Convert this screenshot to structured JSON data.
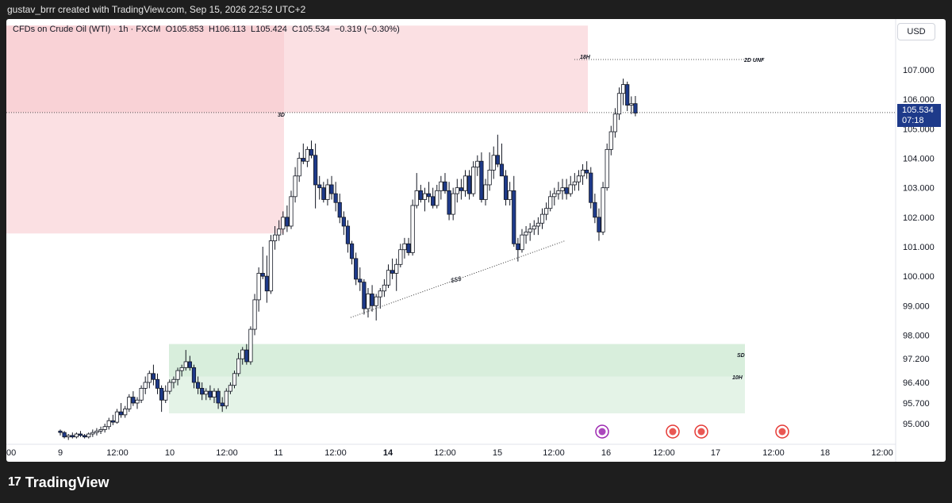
{
  "header": {
    "attribution": "gustav_brrr created with TradingView.com, Sep 15, 2026 22:52 UTC+2"
  },
  "legend": {
    "symbol": "CFDs on Crude Oil (WTI)",
    "interval": "1h",
    "source": "FXCM",
    "ohlc_text": "O105.853  H106.113  L105.424  C105.534  −0.319 (−0.30%)"
  },
  "currency": "USD",
  "last_price": {
    "price": "105.534",
    "countdown": "07:18"
  },
  "footer": {
    "logo": "17",
    "brand": "TradingView"
  },
  "colors": {
    "bull_candle_fill": "#ffffff",
    "bear_candle_fill": "#1e3a8a",
    "candle_outline": "#131722",
    "supply_zone": "#f7c6cc",
    "demand_zone": "#cde9d3",
    "event_purple": "#9c27b0",
    "event_red": "#e53935"
  },
  "chart_data": {
    "type": "candlestick",
    "symbol": "CFDs on Crude Oil (WTI)",
    "timeframe": "1h",
    "y_axis": {
      "ticks": [
        95.0,
        95.7,
        96.4,
        97.2,
        98.0,
        99.0,
        100.0,
        101.0,
        102.0,
        103.0,
        104.0,
        105.0,
        106.0,
        107.0
      ],
      "tick_labels": [
        "95.000",
        "95.700",
        "96.400",
        "97.200",
        "98.000",
        "99.000",
        "100.000",
        "101.000",
        "102.000",
        "103.000",
        "104.000",
        "105.000",
        "106.000",
        "107.000"
      ],
      "range": [
        94.4,
        108.5
      ]
    },
    "x_axis": {
      "labels": [
        "00",
        "9",
        "12:00",
        "10",
        "12:00",
        "11",
        "12:00",
        "14",
        "12:00",
        "15",
        "12:00",
        "16",
        "12:00",
        "17",
        "12:00",
        "18",
        "12:00"
      ],
      "bold_labels": [
        "14"
      ]
    },
    "annotations": {
      "zone_labels": [
        "3D",
        "18H",
        "2D UNF",
        "SD",
        "10H"
      ],
      "trendline_label": "$$$"
    },
    "current_price": 105.534,
    "levels": {
      "2D UNF": 107.35,
      "current": 105.55
    },
    "zones": [
      {
        "label": "3D",
        "type": "supply",
        "top": 108.5,
        "bottom": 101.45,
        "from": "Sep 8",
        "to": "Sep 11 12:00"
      },
      {
        "label": "18H",
        "type": "supply",
        "top": 108.5,
        "bottom": 105.55,
        "from": "Sep 8",
        "to": "Sep 15 20:00"
      },
      {
        "label": "SD",
        "type": "demand",
        "top": 97.7,
        "bottom": 96.6,
        "from": "Sep 10",
        "to": "Sep 17"
      },
      {
        "label": "10H",
        "type": "demand",
        "top": 97.7,
        "bottom": 95.35,
        "from": "Sep 10",
        "to": "Sep 17"
      }
    ],
    "trendline": {
      "label": "$$$",
      "start": {
        "time": "Sep 14 05:00",
        "price": 98.6
      },
      "end": {
        "time": "Sep 15 17:00",
        "price": 101.2
      }
    },
    "candles": [
      [
        94.75,
        94.8,
        94.6,
        94.7
      ],
      [
        94.7,
        94.75,
        94.5,
        94.55
      ],
      [
        94.55,
        94.65,
        94.45,
        94.6
      ],
      [
        94.6,
        94.7,
        94.5,
        94.55
      ],
      [
        94.55,
        94.7,
        94.5,
        94.65
      ],
      [
        94.65,
        94.75,
        94.55,
        94.6
      ],
      [
        94.6,
        94.65,
        94.5,
        94.55
      ],
      [
        94.55,
        94.7,
        94.5,
        94.65
      ],
      [
        94.65,
        94.8,
        94.55,
        94.7
      ],
      [
        94.7,
        94.85,
        94.6,
        94.75
      ],
      [
        94.75,
        94.9,
        94.65,
        94.8
      ],
      [
        94.8,
        95.0,
        94.7,
        94.9
      ],
      [
        94.9,
        95.2,
        94.8,
        95.1
      ],
      [
        95.1,
        95.3,
        94.95,
        95.05
      ],
      [
        95.05,
        95.5,
        95.0,
        95.4
      ],
      [
        95.4,
        95.7,
        95.2,
        95.3
      ],
      [
        95.3,
        95.6,
        95.2,
        95.5
      ],
      [
        95.5,
        96.0,
        95.4,
        95.9
      ],
      [
        95.9,
        96.1,
        95.6,
        95.7
      ],
      [
        95.7,
        95.9,
        95.5,
        95.8
      ],
      [
        95.8,
        96.3,
        95.7,
        96.2
      ],
      [
        96.2,
        96.6,
        96.0,
        96.4
      ],
      [
        96.4,
        96.8,
        96.2,
        96.7
      ],
      [
        96.7,
        97.0,
        96.3,
        96.5
      ],
      [
        96.5,
        96.7,
        96.0,
        96.2
      ],
      [
        96.2,
        96.3,
        95.4,
        95.8
      ],
      [
        95.8,
        96.3,
        95.7,
        96.1
      ],
      [
        96.1,
        96.5,
        96.0,
        96.4
      ],
      [
        96.4,
        96.6,
        96.2,
        96.5
      ],
      [
        96.5,
        96.9,
        96.3,
        96.8
      ],
      [
        96.8,
        97.0,
        96.6,
        96.9
      ],
      [
        96.9,
        97.5,
        96.8,
        97.1
      ],
      [
        97.1,
        97.3,
        96.8,
        96.9
      ],
      [
        96.9,
        97.0,
        96.2,
        96.4
      ],
      [
        96.4,
        96.6,
        96.0,
        96.2
      ],
      [
        96.2,
        96.4,
        95.8,
        96.0
      ],
      [
        96.0,
        96.2,
        95.8,
        96.1
      ],
      [
        96.1,
        96.3,
        95.8,
        95.9
      ],
      [
        95.9,
        96.2,
        95.7,
        96.1
      ],
      [
        96.1,
        96.2,
        95.5,
        95.7
      ],
      [
        95.7,
        95.9,
        95.4,
        95.6
      ],
      [
        95.6,
        96.2,
        95.5,
        96.1
      ],
      [
        96.1,
        96.4,
        96.0,
        96.3
      ],
      [
        96.3,
        96.8,
        96.2,
        96.7
      ],
      [
        96.7,
        97.4,
        96.6,
        97.2
      ],
      [
        97.2,
        97.6,
        97.0,
        97.5
      ],
      [
        97.5,
        97.7,
        97.0,
        97.1
      ],
      [
        97.1,
        98.3,
        97.0,
        98.2
      ],
      [
        98.2,
        99.4,
        98.0,
        99.2
      ],
      [
        99.2,
        100.3,
        98.8,
        100.1
      ],
      [
        100.1,
        101.0,
        99.9,
        100.0
      ],
      [
        100.0,
        100.7,
        99.1,
        99.5
      ],
      [
        99.5,
        101.4,
        99.4,
        101.2
      ],
      [
        101.2,
        101.7,
        100.9,
        101.4
      ],
      [
        101.4,
        101.9,
        101.2,
        101.6
      ],
      [
        101.6,
        102.2,
        101.4,
        102.0
      ],
      [
        102.0,
        102.4,
        101.5,
        101.7
      ],
      [
        101.7,
        102.9,
        101.6,
        102.7
      ],
      [
        102.7,
        103.7,
        102.5,
        103.4
      ],
      [
        103.4,
        104.2,
        103.2,
        104.0
      ],
      [
        104.0,
        104.5,
        103.8,
        103.9
      ],
      [
        103.9,
        104.4,
        103.7,
        104.3
      ],
      [
        104.3,
        104.6,
        104.0,
        104.1
      ],
      [
        104.1,
        104.5,
        102.3,
        103.1
      ],
      [
        103.1,
        103.4,
        102.6,
        103.0
      ],
      [
        103.0,
        103.2,
        102.5,
        102.6
      ],
      [
        102.6,
        103.3,
        102.4,
        103.1
      ],
      [
        103.1,
        103.4,
        102.6,
        102.8
      ],
      [
        102.8,
        103.2,
        102.2,
        102.5
      ],
      [
        102.5,
        102.8,
        101.8,
        102.0
      ],
      [
        102.0,
        102.2,
        101.4,
        101.7
      ],
      [
        101.7,
        101.9,
        100.8,
        101.1
      ],
      [
        101.1,
        101.2,
        100.4,
        100.6
      ],
      [
        100.6,
        100.8,
        99.7,
        99.9
      ],
      [
        99.9,
        100.3,
        99.5,
        99.8
      ],
      [
        99.8,
        99.9,
        98.7,
        98.9
      ],
      [
        98.9,
        99.6,
        98.6,
        99.4
      ],
      [
        99.4,
        99.7,
        98.8,
        99.0
      ],
      [
        99.0,
        99.4,
        98.5,
        99.3
      ],
      [
        99.3,
        99.6,
        98.9,
        99.5
      ],
      [
        99.5,
        99.9,
        99.3,
        99.7
      ],
      [
        99.7,
        100.4,
        99.6,
        100.2
      ],
      [
        100.2,
        100.6,
        99.9,
        100.1
      ],
      [
        100.1,
        100.6,
        99.5,
        100.4
      ],
      [
        100.4,
        101.1,
        100.3,
        100.9
      ],
      [
        100.9,
        101.3,
        100.6,
        101.1
      ],
      [
        101.1,
        101.3,
        100.7,
        100.8
      ],
      [
        100.8,
        102.6,
        100.7,
        102.4
      ],
      [
        102.4,
        103.5,
        102.3,
        102.9
      ],
      [
        102.9,
        103.1,
        102.5,
        102.6
      ],
      [
        102.6,
        103.0,
        102.2,
        102.8
      ],
      [
        102.8,
        103.2,
        102.5,
        102.7
      ],
      [
        102.7,
        103.0,
        102.3,
        102.4
      ],
      [
        102.4,
        103.1,
        102.3,
        102.9
      ],
      [
        102.9,
        103.4,
        102.6,
        103.2
      ],
      [
        103.2,
        103.5,
        102.8,
        102.9
      ],
      [
        102.9,
        103.2,
        101.9,
        102.1
      ],
      [
        102.1,
        103.0,
        101.9,
        102.8
      ],
      [
        102.8,
        103.3,
        102.5,
        103.0
      ],
      [
        103.0,
        103.3,
        102.6,
        102.9
      ],
      [
        102.9,
        103.6,
        102.7,
        103.4
      ],
      [
        103.4,
        103.6,
        102.6,
        102.8
      ],
      [
        102.8,
        103.9,
        102.7,
        103.7
      ],
      [
        103.7,
        104.1,
        103.4,
        103.9
      ],
      [
        103.9,
        104.2,
        102.5,
        102.6
      ],
      [
        102.6,
        103.3,
        102.4,
        103.1
      ],
      [
        103.1,
        104.2,
        102.9,
        103.6
      ],
      [
        103.6,
        104.4,
        103.3,
        104.1
      ],
      [
        104.1,
        104.8,
        103.7,
        103.8
      ],
      [
        103.8,
        104.5,
        103.4,
        103.4
      ],
      [
        103.4,
        103.6,
        102.4,
        102.6
      ],
      [
        102.6,
        103.2,
        102.4,
        102.9
      ],
      [
        102.9,
        103.4,
        101.0,
        101.1
      ],
      [
        101.1,
        101.3,
        100.5,
        100.9
      ],
      [
        100.9,
        101.6,
        100.8,
        101.4
      ],
      [
        101.4,
        101.7,
        101.1,
        101.5
      ],
      [
        101.5,
        101.8,
        101.2,
        101.6
      ],
      [
        101.6,
        101.9,
        101.4,
        101.7
      ],
      [
        101.7,
        102.0,
        101.4,
        101.8
      ],
      [
        101.8,
        102.3,
        101.6,
        102.1
      ],
      [
        102.1,
        102.5,
        101.9,
        102.3
      ],
      [
        102.3,
        102.9,
        102.2,
        102.7
      ],
      [
        102.7,
        103.0,
        102.4,
        102.8
      ],
      [
        102.8,
        103.2,
        102.6,
        102.9
      ],
      [
        102.9,
        103.3,
        102.6,
        103.0
      ],
      [
        103.0,
        103.3,
        102.6,
        102.8
      ],
      [
        102.8,
        103.4,
        102.7,
        103.1
      ],
      [
        103.1,
        103.5,
        102.9,
        103.2
      ],
      [
        103.2,
        103.6,
        102.9,
        103.4
      ],
      [
        103.4,
        103.8,
        103.1,
        103.6
      ],
      [
        103.6,
        103.9,
        103.3,
        103.5
      ],
      [
        103.5,
        103.7,
        102.3,
        102.5
      ],
      [
        102.5,
        102.8,
        101.8,
        102.0
      ],
      [
        102.0,
        102.3,
        101.2,
        101.5
      ],
      [
        101.5,
        103.2,
        101.4,
        103.0
      ],
      [
        103.0,
        104.5,
        102.9,
        104.3
      ],
      [
        104.3,
        105.1,
        104.1,
        104.9
      ],
      [
        104.9,
        105.7,
        104.7,
        105.5
      ],
      [
        105.5,
        106.4,
        105.3,
        106.2
      ],
      [
        106.2,
        106.7,
        105.8,
        106.5
      ],
      [
        106.5,
        106.6,
        105.6,
        105.8
      ],
      [
        105.8,
        106.1,
        105.5,
        105.85
      ],
      [
        105.853,
        106.113,
        105.424,
        105.534
      ]
    ]
  }
}
